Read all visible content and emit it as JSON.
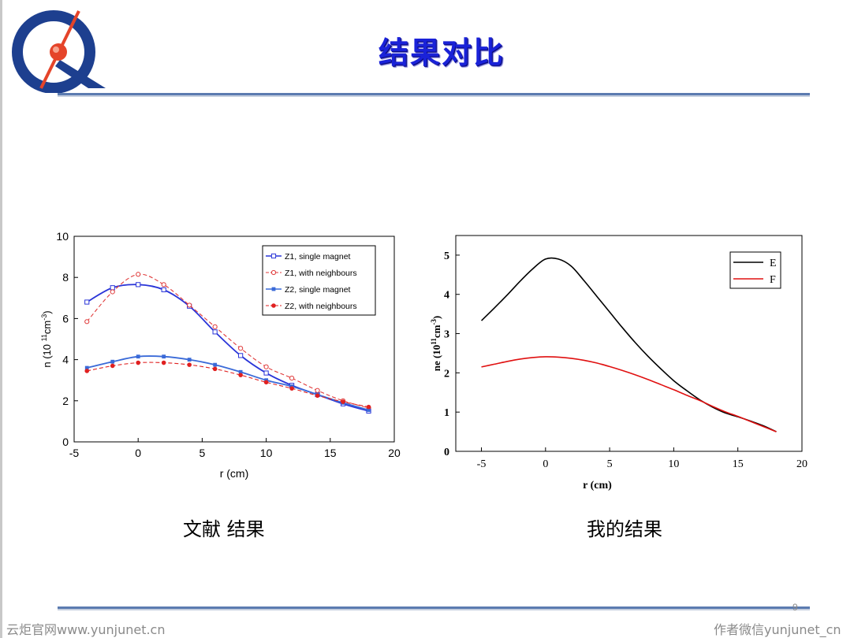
{
  "slide": {
    "title": "结果对比",
    "page_number": "9",
    "caption_left": "文献 结果",
    "caption_right": "我的结果",
    "watermark_left": "云炬官网www.yunjunet.cn",
    "watermark_right": "作者微信yunjunet_cn"
  },
  "colors": {
    "title": "#1a22d8",
    "rule": "#5b7bb0",
    "logo_blue": "#1d3f8f",
    "logo_red": "#e5442a"
  },
  "chart_data": [
    {
      "type": "line",
      "xlabel": "r (cm)",
      "ylabel": "n (10 11cm-3)",
      "xlim": [
        -5,
        20
      ],
      "ylim": [
        0,
        10
      ],
      "xticks": [
        "-5",
        "0",
        "5",
        "10",
        "15",
        "20"
      ],
      "yticks": [
        "0",
        "2",
        "4",
        "6",
        "8",
        "10"
      ],
      "legend_position": "top-right",
      "series": [
        {
          "name": "Z1, single magnet",
          "color": "#2a35d8",
          "dash": false,
          "marker": "open-square",
          "x": [
            -4,
            -2,
            0,
            2,
            4,
            6,
            8,
            10,
            12,
            14,
            16,
            18
          ],
          "y": [
            6.8,
            7.5,
            7.65,
            7.4,
            6.6,
            5.35,
            4.2,
            3.35,
            2.75,
            2.3,
            1.85,
            1.5
          ]
        },
        {
          "name": "Z1, with neighbours",
          "color": "#e03a3a",
          "dash": true,
          "marker": "open-circle",
          "x": [
            -4,
            -2,
            0,
            2,
            4,
            6,
            8,
            10,
            12,
            14,
            16,
            18
          ],
          "y": [
            5.85,
            7.3,
            8.15,
            7.65,
            6.65,
            5.6,
            4.55,
            3.65,
            3.1,
            2.5,
            2.0,
            1.65
          ]
        },
        {
          "name": "Z2, single magnet",
          "color": "#3a6ad8",
          "dash": false,
          "marker": "filled-square",
          "x": [
            -4,
            -2,
            0,
            2,
            4,
            6,
            8,
            10,
            12,
            14,
            16,
            18
          ],
          "y": [
            3.6,
            3.9,
            4.15,
            4.15,
            4.0,
            3.75,
            3.4,
            3.0,
            2.7,
            2.3,
            1.9,
            1.55
          ]
        },
        {
          "name": "Z2, with neighbours",
          "color": "#e02020",
          "dash": true,
          "marker": "filled-circle",
          "x": [
            -4,
            -2,
            0,
            2,
            4,
            6,
            8,
            10,
            12,
            14,
            16,
            18
          ],
          "y": [
            3.45,
            3.7,
            3.85,
            3.85,
            3.75,
            3.55,
            3.25,
            2.9,
            2.6,
            2.25,
            1.95,
            1.7
          ]
        }
      ]
    },
    {
      "type": "line",
      "xlabel": "r (cm)",
      "ylabel": "ne (1011cm-3)",
      "xlim": [
        -7,
        20
      ],
      "ylim": [
        0,
        5.5
      ],
      "xticks": [
        "-5",
        "0",
        "5",
        "10",
        "15",
        "20"
      ],
      "yticks": [
        "0",
        "1",
        "2",
        "3",
        "4",
        "5"
      ],
      "legend_position": "top-right",
      "series": [
        {
          "name": "E",
          "color": "#000000",
          "x": [
            -5,
            -4,
            -3,
            -2,
            -1,
            0,
            1,
            2,
            3,
            4,
            5,
            6,
            7,
            8,
            9,
            10,
            11,
            12,
            13,
            14,
            15,
            16,
            17,
            18
          ],
          "y": [
            3.33,
            3.65,
            3.98,
            4.33,
            4.65,
            4.9,
            4.9,
            4.72,
            4.35,
            3.95,
            3.55,
            3.15,
            2.77,
            2.42,
            2.1,
            1.8,
            1.55,
            1.32,
            1.13,
            0.98,
            0.88,
            0.77,
            0.65,
            0.5
          ]
        },
        {
          "name": "F",
          "color": "#e01010",
          "x": [
            -5,
            -4,
            -3,
            -2,
            -1,
            0,
            1,
            2,
            3,
            4,
            5,
            6,
            7,
            8,
            9,
            10,
            11,
            12,
            13,
            14,
            15,
            16,
            17,
            18
          ],
          "y": [
            2.15,
            2.22,
            2.29,
            2.35,
            2.39,
            2.41,
            2.4,
            2.37,
            2.32,
            2.25,
            2.16,
            2.06,
            1.95,
            1.83,
            1.7,
            1.57,
            1.43,
            1.3,
            1.15,
            1.01,
            0.89,
            0.76,
            0.63,
            0.5
          ]
        }
      ]
    }
  ]
}
